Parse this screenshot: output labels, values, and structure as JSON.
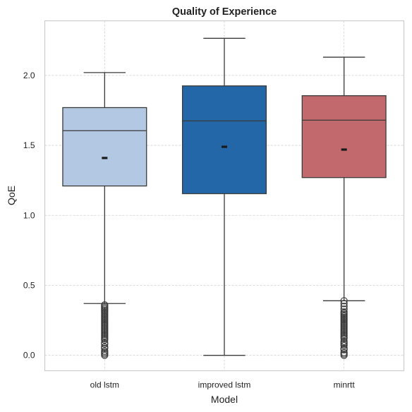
{
  "chart_data": {
    "type": "box",
    "title": "Quality of Experience",
    "xlabel": "Model",
    "ylabel": "QoE",
    "ylim": [
      -0.11,
      2.39
    ],
    "yticks": [
      0.0,
      0.5,
      1.0,
      1.5,
      2.0
    ],
    "ytick_labels": [
      "0.0",
      "0.5",
      "1.0",
      "1.5",
      "2.0"
    ],
    "grid": true,
    "categories": [
      "old lstm",
      "improved lstm",
      "minrtt"
    ],
    "series": [
      {
        "category": "old lstm",
        "color": "#b3c8e3",
        "whisker_low": 0.37,
        "q1": 1.21,
        "median": 1.605,
        "q3": 1.77,
        "whisker_high": 2.02,
        "mean": 1.41,
        "outliers": [
          0.0,
          0.01,
          0.02,
          0.03,
          0.05,
          0.06,
          0.08,
          0.09,
          0.11,
          0.12,
          0.13,
          0.14,
          0.15,
          0.16,
          0.17,
          0.18,
          0.19,
          0.2,
          0.21,
          0.22,
          0.23,
          0.24,
          0.25,
          0.26,
          0.27,
          0.28,
          0.29,
          0.3,
          0.31,
          0.32,
          0.33,
          0.34,
          0.35,
          0.36
        ]
      },
      {
        "category": "improved lstm",
        "color": "#2367a8",
        "whisker_low": 0.0,
        "q1": 1.155,
        "median": 1.675,
        "q3": 1.925,
        "whisker_high": 2.265,
        "mean": 1.49,
        "outliers": []
      },
      {
        "category": "minrtt",
        "color": "#c1696d",
        "whisker_low": 0.39,
        "q1": 1.27,
        "median": 1.68,
        "q3": 1.855,
        "whisker_high": 2.13,
        "mean": 1.47,
        "outliers": [
          0.0,
          0.01,
          0.02,
          0.04,
          0.05,
          0.07,
          0.08,
          0.09,
          0.1,
          0.12,
          0.13,
          0.14,
          0.15,
          0.16,
          0.17,
          0.18,
          0.19,
          0.2,
          0.21,
          0.22,
          0.23,
          0.24,
          0.25,
          0.26,
          0.27,
          0.28,
          0.29,
          0.3,
          0.31,
          0.33,
          0.35,
          0.37,
          0.39
        ]
      }
    ]
  }
}
